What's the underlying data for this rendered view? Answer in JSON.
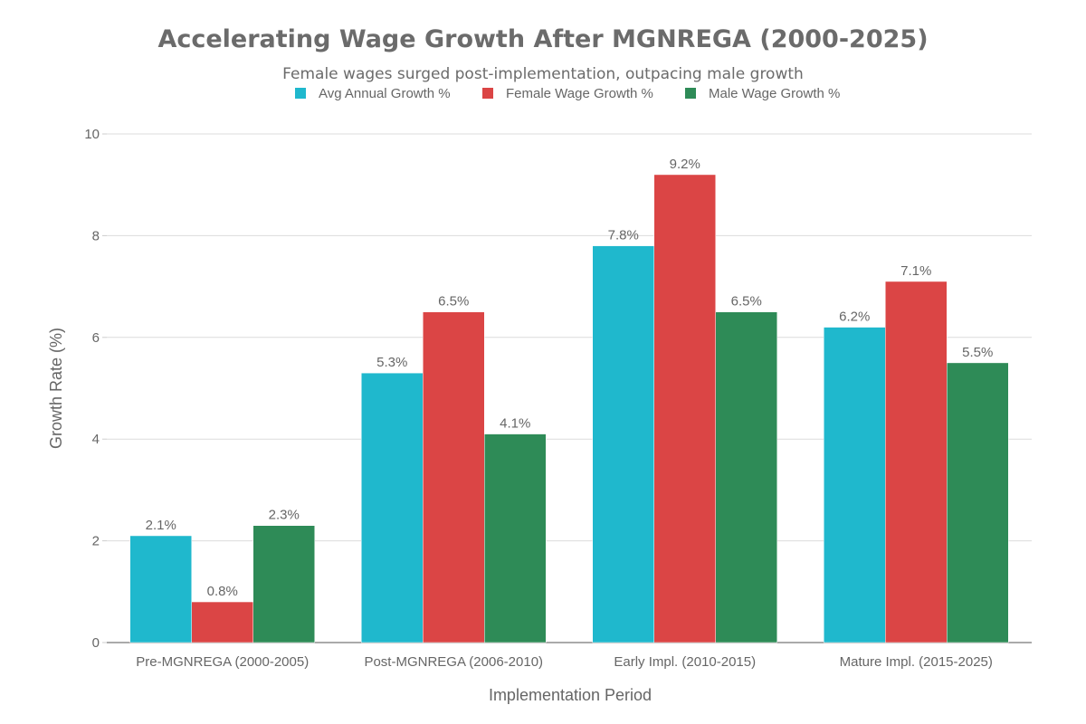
{
  "chart_data": {
    "type": "bar",
    "title": "Accelerating Wage Growth After MGNREGA (2000-2025)",
    "subtitle": "Female wages surged post-implementation, outpacing male growth",
    "xlabel": "Implementation Period",
    "ylabel": "Growth Rate (%)",
    "ylim": [
      0,
      10
    ],
    "yticks": [
      0,
      2,
      4,
      6,
      8,
      10
    ],
    "grid": true,
    "legend_position": "top-center",
    "categories": [
      "Pre-MGNREGA (2000-2005)",
      "Post-MGNREGA (2006-2010)",
      "Early Impl. (2010-2015)",
      "Mature Impl. (2015-2025)"
    ],
    "series": [
      {
        "name": "Avg Annual Growth %",
        "color": "#1FB8CD",
        "values": [
          2.1,
          5.3,
          7.8,
          6.2
        ],
        "labels": [
          "2.1%",
          "5.3%",
          "7.8%",
          "6.2%"
        ]
      },
      {
        "name": "Female Wage Growth %",
        "color": "#DB4545",
        "values": [
          0.8,
          6.5,
          9.2,
          7.1
        ],
        "labels": [
          "0.8%",
          "6.5%",
          "9.2%",
          "7.1%"
        ]
      },
      {
        "name": "Male Wage Growth %",
        "color": "#2E8B57",
        "values": [
          2.3,
          4.1,
          6.5,
          5.5
        ],
        "labels": [
          "2.3%",
          "4.1%",
          "6.5%",
          "5.5%"
        ]
      }
    ]
  }
}
